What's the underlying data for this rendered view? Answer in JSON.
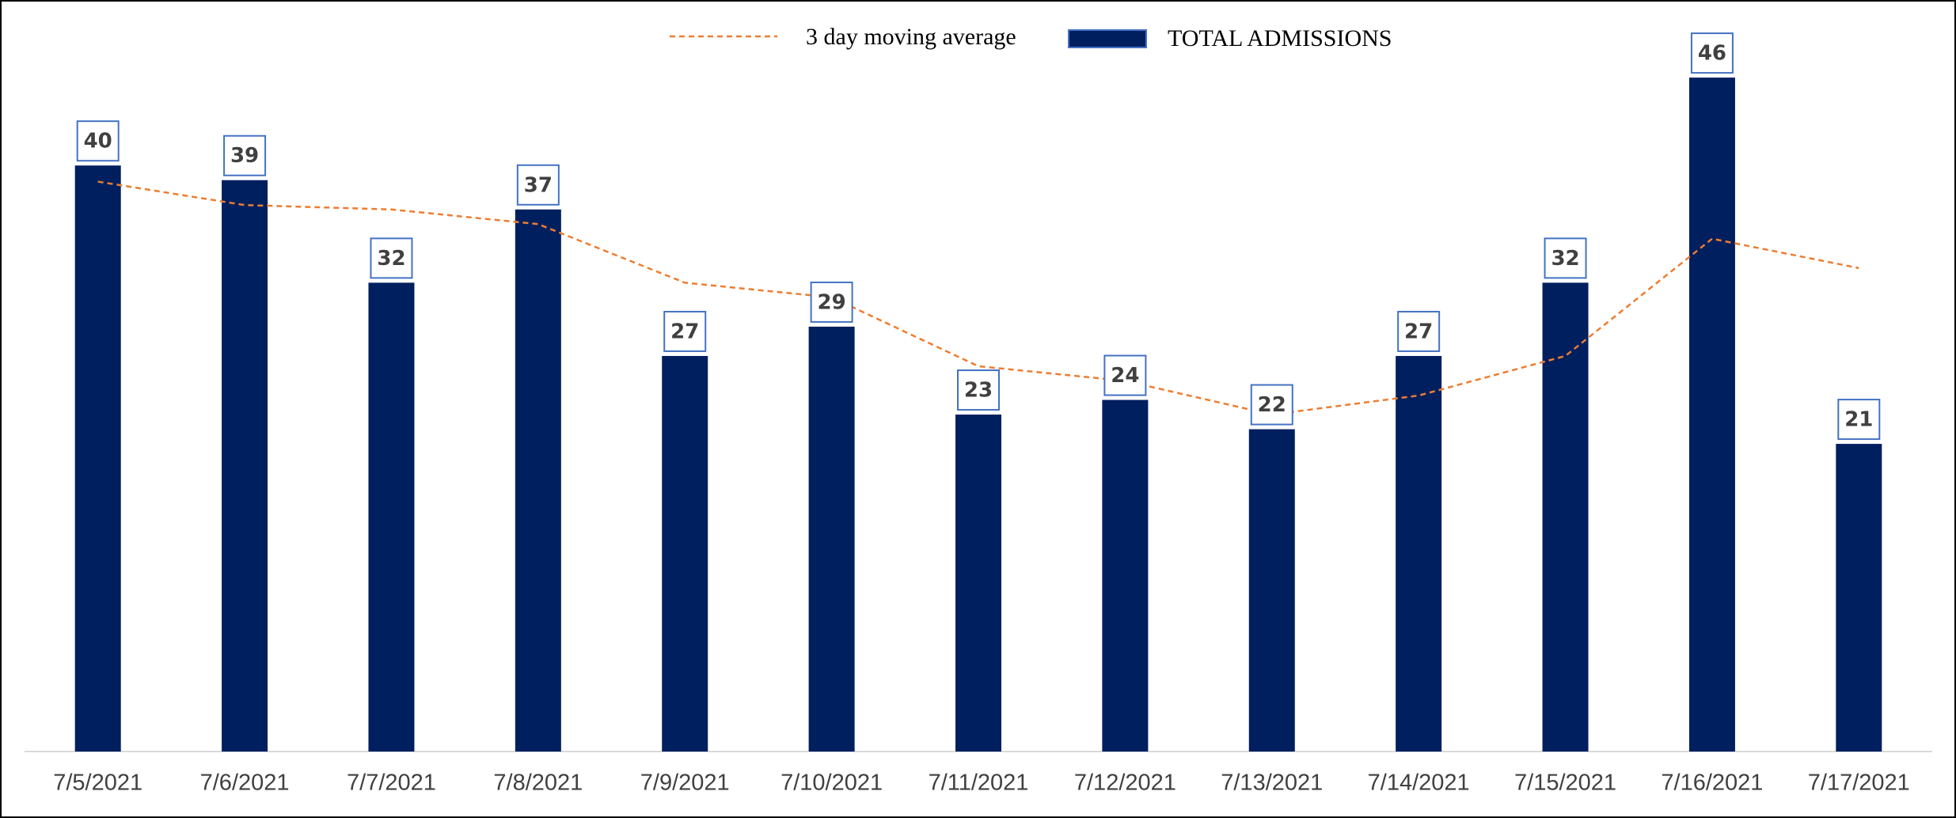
{
  "chart_data": {
    "type": "bar",
    "categories": [
      "7/5/2021",
      "7/6/2021",
      "7/7/2021",
      "7/8/2021",
      "7/9/2021",
      "7/10/2021",
      "7/11/2021",
      "7/12/2021",
      "7/13/2021",
      "7/14/2021",
      "7/15/2021",
      "7/16/2021",
      "7/17/2021"
    ],
    "series": [
      {
        "name": "TOTAL ADMISSIONS",
        "type": "bar",
        "color": "#001f5f",
        "values": [
          40,
          39,
          32,
          37,
          27,
          29,
          23,
          24,
          22,
          27,
          32,
          46,
          21
        ]
      },
      {
        "name": "3 day moving average",
        "type": "line",
        "color": "#ed7d31",
        "values": [
          38.9,
          37.3,
          37,
          36,
          32,
          31,
          26.3,
          25.3,
          23,
          24.3,
          27,
          35,
          33
        ]
      }
    ],
    "ylim": [
      0,
      50
    ],
    "data_labels": true,
    "legend": "top"
  }
}
